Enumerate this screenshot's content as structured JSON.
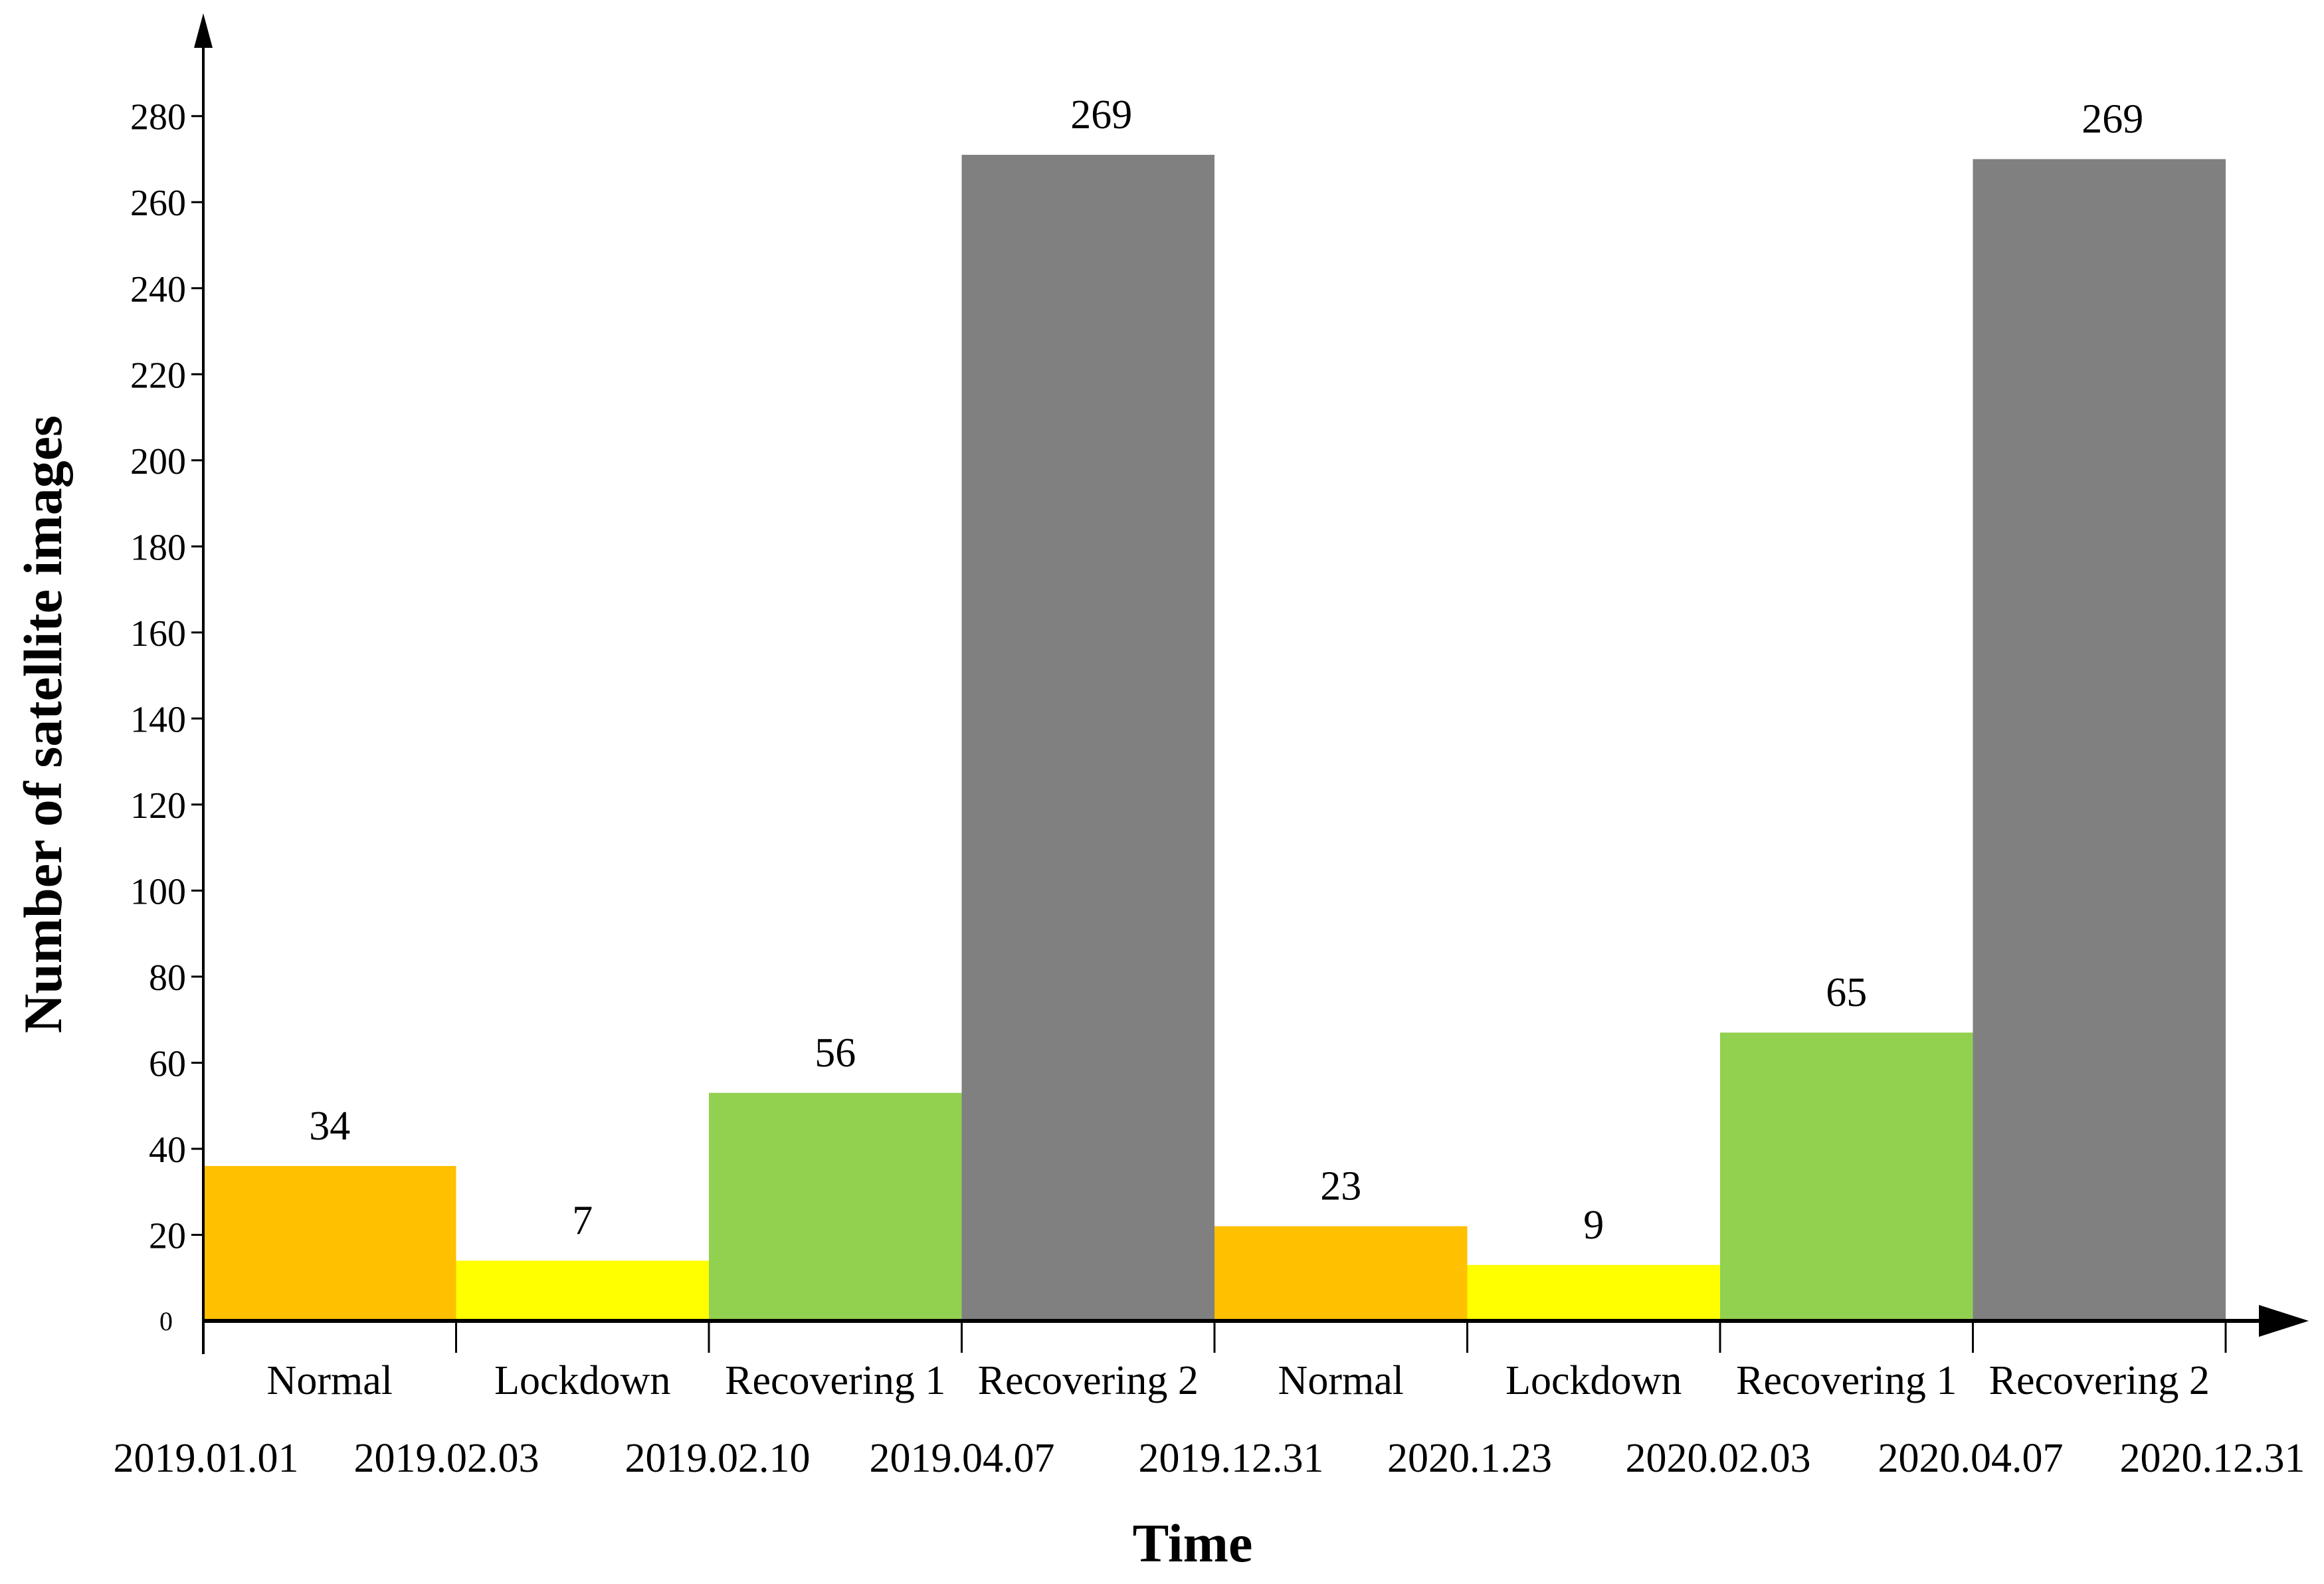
{
  "chart_data": {
    "type": "bar",
    "title": "",
    "xlabel": "Time",
    "ylabel": "Number of satellite images",
    "ylim": [
      0,
      280
    ],
    "y_ticks": [
      0,
      20,
      40,
      60,
      80,
      100,
      120,
      140,
      160,
      180,
      200,
      220,
      240,
      260,
      280
    ],
    "categories": [
      "Normal",
      "Lockdown",
      "Recovering 1",
      "Recovering 2",
      "Normal",
      "Lockdown",
      "Recovering 1",
      "Recovering 2"
    ],
    "values": [
      34,
      7,
      56,
      269,
      23,
      9,
      65,
      269
    ],
    "bar_heights": [
      36,
      14,
      53,
      271,
      22,
      13,
      67,
      270
    ],
    "data_labels": [
      "34",
      "7",
      "56",
      "269",
      "23",
      "9",
      "65",
      "269"
    ],
    "boundary_dates": [
      "2019.01.01",
      "2019.02.03",
      "2019.02.10",
      "2019.04.07",
      "2019.12.31",
      "2020.1.23",
      "2020.02.03",
      "2020.04.07",
      "2020.12.31"
    ],
    "colors": [
      "#ffc000",
      "#ffff00",
      "#92d050",
      "#808080",
      "#ffc000",
      "#ffff00",
      "#92d050",
      "#808080"
    ],
    "grid": false,
    "legend": "none"
  }
}
